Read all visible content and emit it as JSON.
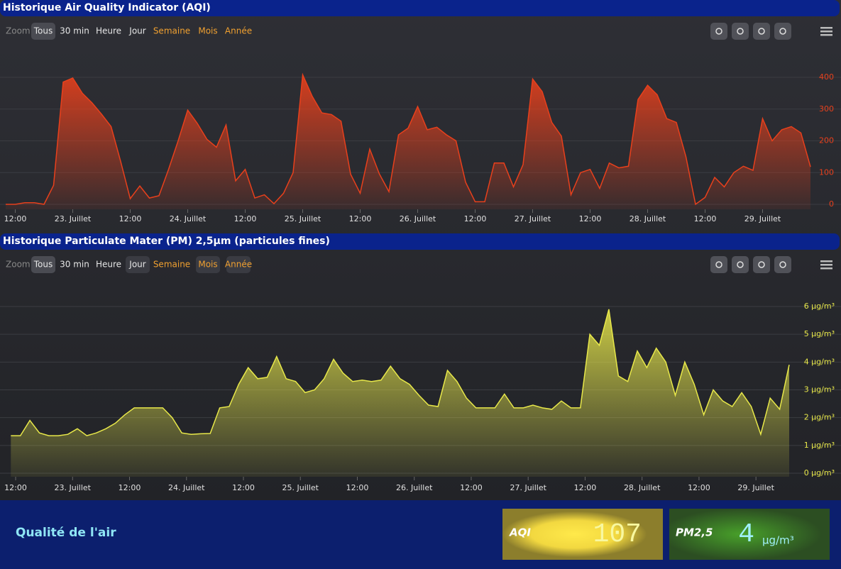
{
  "toolbar": {
    "label": "Zoom",
    "buttons": [
      "Tous",
      "30 min",
      "Heure",
      "Jour",
      "Semaine",
      "Mois",
      "Année"
    ]
  },
  "chart_data": [
    {
      "type": "area",
      "title": "Historique Air Quality Indicator (AQI)",
      "color": "#e8401c",
      "x": [
        10,
        12,
        14,
        16,
        18,
        20,
        22,
        24,
        26,
        28,
        30,
        32,
        34,
        36,
        38,
        40,
        42,
        44,
        46,
        48,
        50,
        52,
        54,
        56,
        58,
        60,
        62,
        64,
        66,
        68,
        70,
        72,
        74,
        76,
        78,
        80,
        82,
        84,
        86,
        88,
        90,
        92,
        94,
        96,
        98,
        100,
        102,
        104,
        106,
        108,
        110,
        112,
        114,
        116,
        118,
        120,
        122,
        124,
        126,
        128,
        130,
        132,
        134,
        136,
        138,
        140,
        142,
        144,
        146,
        148,
        150,
        152,
        154,
        156,
        158,
        160,
        162,
        164,
        166,
        168,
        170,
        172,
        174,
        176,
        178
      ],
      "series": [
        {
          "name": "AQI",
          "color": "#e8401c",
          "values": [
            0,
            0,
            5,
            5,
            0,
            60,
            385,
            398,
            350,
            320,
            284,
            245,
            135,
            18,
            58,
            20,
            27,
            110,
            200,
            297,
            255,
            205,
            180,
            250,
            74,
            110,
            20,
            30,
            2,
            35,
            100,
            408,
            340,
            288,
            283,
            262,
            95,
            35,
            174,
            96,
            40,
            219,
            240,
            308,
            235,
            243,
            219,
            200,
            70,
            8,
            8,
            130,
            130,
            55,
            125,
            395,
            355,
            258,
            215,
            30,
            100,
            110,
            50,
            130,
            115,
            120,
            330,
            375,
            345,
            270,
            258,
            150,
            0,
            22,
            85,
            55,
            100,
            120,
            107,
            270,
            200,
            235,
            245,
            225,
            118
          ]
        }
      ],
      "xlim": [
        10,
        178
      ],
      "xticks": [
        {
          "value": 12,
          "label": "12:00"
        },
        {
          "value": 24,
          "label": "23. Juillet"
        },
        {
          "value": 36,
          "label": "12:00"
        },
        {
          "value": 48,
          "label": "24. Juillet"
        },
        {
          "value": 60,
          "label": "12:00"
        },
        {
          "value": 72,
          "label": "25. Juillet"
        },
        {
          "value": 84,
          "label": "12:00"
        },
        {
          "value": 96,
          "label": "26. Juillet"
        },
        {
          "value": 108,
          "label": "12:00"
        },
        {
          "value": 120,
          "label": "27. Juillet"
        },
        {
          "value": 132,
          "label": "12:00"
        },
        {
          "value": 144,
          "label": "28. Juillet"
        },
        {
          "value": 156,
          "label": "12:00"
        },
        {
          "value": 168,
          "label": "29. Juillet"
        }
      ],
      "ylim": [
        -15.6,
        487.2
      ],
      "yticks": [
        0,
        100,
        200,
        300,
        400
      ],
      "grid": true
    },
    {
      "type": "area",
      "title": "Historique Particulate Mater (PM) 2,5µm (particules fines)",
      "color": "#e8e84a",
      "x": [
        11,
        13,
        15,
        17,
        19,
        21,
        23,
        25,
        27,
        29,
        31,
        33,
        35,
        37,
        39,
        41,
        43,
        45,
        47,
        49,
        51,
        53,
        55,
        57,
        59,
        61,
        63,
        65,
        67,
        69,
        71,
        73,
        75,
        77,
        79,
        81,
        83,
        85,
        87,
        89,
        91,
        93,
        95,
        97,
        99,
        101,
        103,
        105,
        107,
        109,
        111,
        113,
        115,
        117,
        119,
        121,
        123,
        125,
        127,
        129,
        131,
        133,
        135,
        137,
        139,
        141,
        143,
        145,
        147,
        149,
        151,
        153,
        155,
        157,
        159,
        161,
        163,
        165,
        167,
        169,
        171,
        173,
        175
      ],
      "series": [
        {
          "name": "PM2,5",
          "color": "#e8e84a",
          "values": [
            1.35,
            1.35,
            1.9,
            1.45,
            1.35,
            1.35,
            1.4,
            1.6,
            1.35,
            1.45,
            1.6,
            1.8,
            2.1,
            2.35,
            2.35,
            2.35,
            2.35,
            2.0,
            1.45,
            1.4,
            1.42,
            1.43,
            2.35,
            2.4,
            3.2,
            3.8,
            3.4,
            3.45,
            4.2,
            3.4,
            3.3,
            2.9,
            3.0,
            3.4,
            4.1,
            3.6,
            3.3,
            3.35,
            3.3,
            3.35,
            3.85,
            3.4,
            3.2,
            2.8,
            2.45,
            2.4,
            3.7,
            3.3,
            2.7,
            2.35,
            2.35,
            2.35,
            2.85,
            2.35,
            2.35,
            2.45,
            2.35,
            2.3,
            2.6,
            2.35,
            2.35,
            5.0,
            4.6,
            5.9,
            3.5,
            3.3,
            4.4,
            3.8,
            4.5,
            4.0,
            2.8,
            4.0,
            3.2,
            2.1,
            3.0,
            2.6,
            2.4,
            2.9,
            2.4,
            1.4,
            2.7,
            2.3,
            3.9
          ]
        }
      ],
      "xlim": [
        10.65,
        176.2
      ],
      "xticks": [
        {
          "value": 12,
          "label": "12:00"
        },
        {
          "value": 24,
          "label": "23. Juillet"
        },
        {
          "value": 36,
          "label": "12:00"
        },
        {
          "value": 48,
          "label": "24. Juillet"
        },
        {
          "value": 60,
          "label": "12:00"
        },
        {
          "value": 72,
          "label": "25. Juillet"
        },
        {
          "value": 84,
          "label": "12:00"
        },
        {
          "value": 96,
          "label": "26. Juillet"
        },
        {
          "value": 108,
          "label": "12:00"
        },
        {
          "value": 120,
          "label": "27. Juillet"
        },
        {
          "value": 132,
          "label": "12:00"
        },
        {
          "value": 144,
          "label": "28. Juillet"
        },
        {
          "value": 156,
          "label": "12:00"
        },
        {
          "value": 168,
          "label": "29. Juillet"
        }
      ],
      "ylim": [
        -0.128,
        6.868
      ],
      "yticks": [
        {
          "value": 0,
          "label": "0 µg/m³"
        },
        {
          "value": 1,
          "label": "1 µg/m³"
        },
        {
          "value": 2,
          "label": "2 µg/m³"
        },
        {
          "value": 3,
          "label": "3 µg/m³"
        },
        {
          "value": 4,
          "label": "4 µg/m³"
        },
        {
          "value": 5,
          "label": "5 µg/m³"
        },
        {
          "value": 6,
          "label": "6 µg/m³"
        }
      ],
      "grid": true
    }
  ],
  "panel": {
    "title": "Qualité de l'air",
    "aqi": {
      "label": "AQI",
      "value": "107"
    },
    "pm": {
      "label": "PM2,5",
      "value": "4",
      "unit": "µg/m³"
    }
  }
}
